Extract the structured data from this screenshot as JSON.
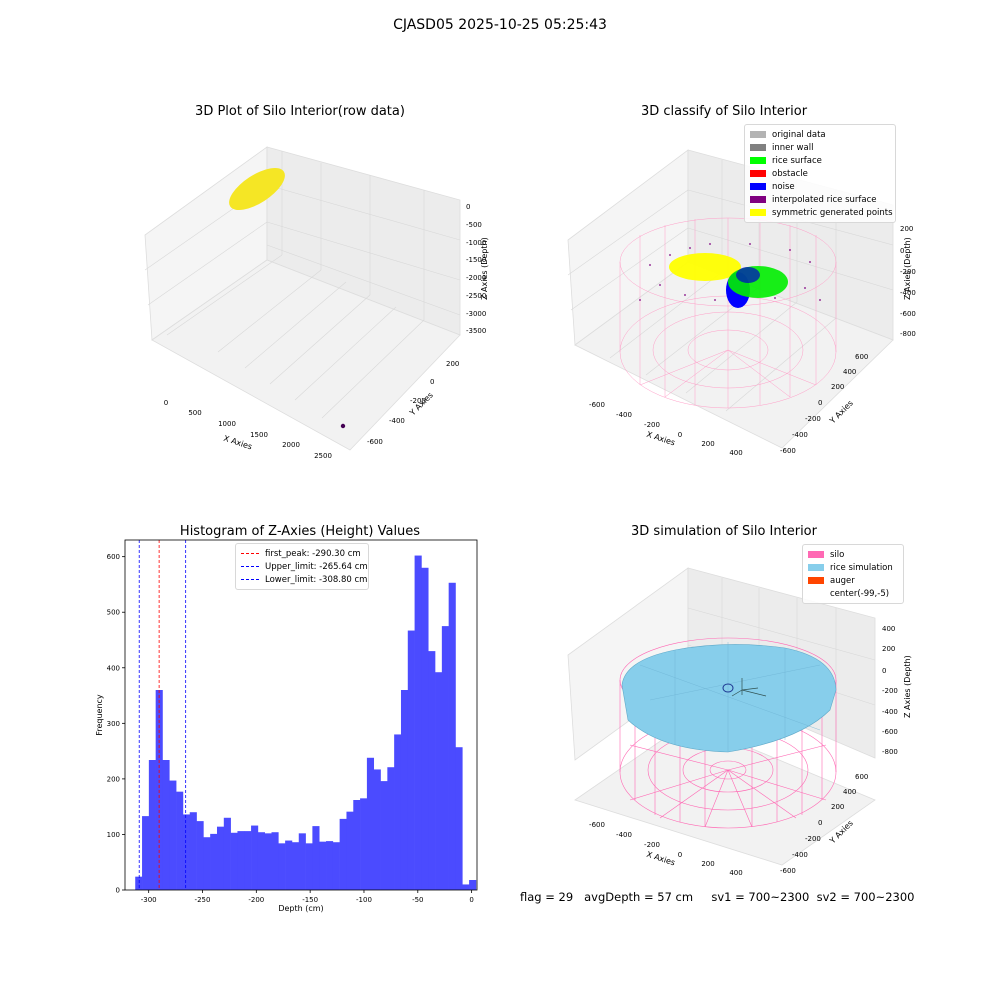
{
  "figure": {
    "suptitle": "CJASD05 2025-10-25 05:25:43",
    "footer": "flag = 29   avgDepth = 57 cm     sv1 = 700~2300  sv2 = 700~2300"
  },
  "chart_data": [
    {
      "type": "scatter",
      "projection": "3d",
      "title": "3D Plot of Silo Interior(row data)",
      "xlabel": "X Axies",
      "ylabel": "Y Axies",
      "zlabel": "Z Axies (Depth)",
      "x_ticks": [
        "0",
        "500",
        "1000",
        "1500",
        "2000",
        "2500"
      ],
      "y_ticks": [
        "-600",
        "-400",
        "-200",
        "0",
        "200"
      ],
      "z_ticks": [
        "0",
        "-500",
        "-1000",
        "-1500",
        "-2000",
        "-2500",
        "-3000",
        "-3500"
      ],
      "series": [
        {
          "color": "#f5e625",
          "points_desc": "dense elliptical cluster near X≈0, Z≈0"
        },
        {
          "color": "#440154",
          "points": [
            [
              2500,
              -600,
              -3700
            ]
          ]
        }
      ]
    },
    {
      "type": "scatter",
      "projection": "3d",
      "title": "3D classify of Silo Interior",
      "xlabel": "X Axies",
      "ylabel": "Y Axies",
      "zlabel": "Z Axies (Depth)",
      "x_ticks": [
        "-600",
        "-400",
        "-200",
        "0",
        "200",
        "400"
      ],
      "y_ticks": [
        "-600",
        "-400",
        "-200",
        "0",
        "200",
        "400",
        "600"
      ],
      "z_ticks": [
        "200",
        "0",
        "-200",
        "-400",
        "-600",
        "-800"
      ],
      "legend": {
        "position": "top-right",
        "entries": [
          {
            "label": "original data",
            "color": "#b3b3b3"
          },
          {
            "label": "inner wall",
            "color": "#808080"
          },
          {
            "label": "rice surface",
            "color": "#00ff00"
          },
          {
            "label": "obstacle",
            "color": "#ff0000"
          },
          {
            "label": "noise",
            "color": "#0000ff"
          },
          {
            "label": "interpolated rice surface",
            "color": "#800080"
          },
          {
            "label": "symmetric generated points",
            "color": "#ffff00"
          }
        ]
      }
    },
    {
      "type": "bar",
      "title": "Histogram of Z-Axies (Height) Values",
      "xlabel": "Depth (cm)",
      "ylabel": "Frequency",
      "xlim": [
        -322,
        5
      ],
      "ylim": [
        0,
        630
      ],
      "x_ticks": [
        -300,
        -250,
        -200,
        -150,
        -100,
        -50,
        0
      ],
      "y_ticks": [
        0,
        100,
        200,
        300,
        400,
        500,
        600
      ],
      "bin_width": 6.33,
      "bin_start": -312.5,
      "bar_color": "#4b4bff",
      "values": [
        24,
        133,
        234,
        360,
        234,
        197,
        177,
        136,
        140,
        124,
        95,
        101,
        114,
        130,
        103,
        106,
        106,
        116,
        104,
        102,
        104,
        84,
        89,
        86,
        102,
        84,
        115,
        87,
        88,
        86,
        128,
        141,
        162,
        165,
        238,
        217,
        196,
        221,
        280,
        360,
        467,
        602,
        580,
        430,
        392,
        475,
        553,
        257,
        10,
        18
      ],
      "reference_lines": [
        {
          "label": "first_peak: -290.30 cm",
          "x": -290.3,
          "color": "#ff0000"
        },
        {
          "label": "Upper_limit: -265.64 cm",
          "x": -265.64,
          "color": "#0000ff"
        },
        {
          "label": "Lower_limit: -308.80 cm",
          "x": -308.8,
          "color": "#0000ff"
        }
      ],
      "legend": {
        "position": "top-center"
      }
    },
    {
      "type": "scatter",
      "projection": "3d",
      "title": "3D simulation of Silo Interior",
      "xlabel": "X Axies",
      "ylabel": "Y Axies",
      "zlabel": "Z Axies (Depth)",
      "x_ticks": [
        "-600",
        "-400",
        "-200",
        "0",
        "200",
        "400"
      ],
      "y_ticks": [
        "-600",
        "-400",
        "-200",
        "0",
        "200",
        "400",
        "600"
      ],
      "z_ticks": [
        "400",
        "200",
        "0",
        "-200",
        "-400",
        "-600",
        "-800"
      ],
      "legend": {
        "position": "top-right",
        "entries": [
          {
            "label": "silo",
            "color": "#ff69b4"
          },
          {
            "label": "rice simulation",
            "color": "#87ceeb"
          },
          {
            "label": "auger",
            "color": "#ff4500"
          },
          {
            "label": "center(-99,-5)",
            "color": ""
          }
        ]
      }
    }
  ]
}
